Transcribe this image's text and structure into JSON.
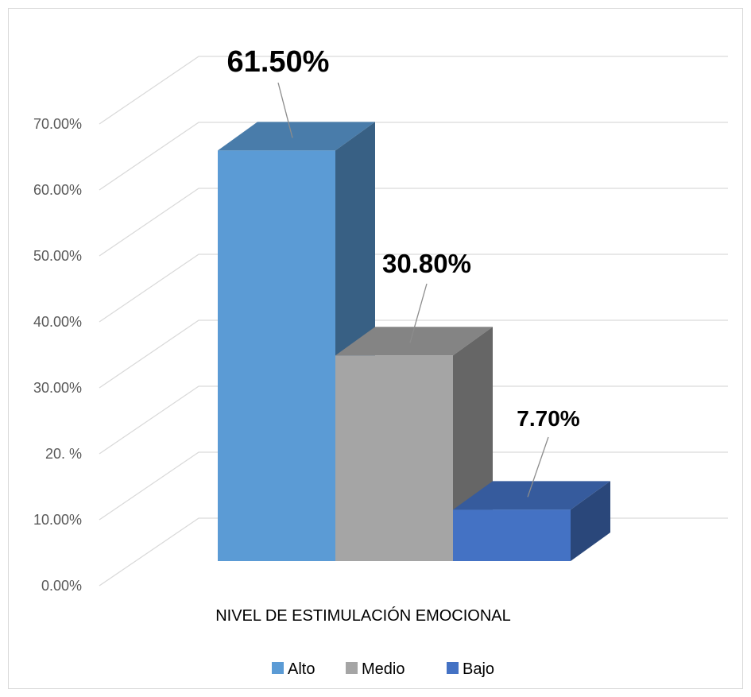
{
  "chart_data": {
    "type": "bar",
    "style": "3d-clustered-column",
    "categories": [
      "NIVEL DE ESTIMULACIÓN EMOCIONAL"
    ],
    "series": [
      {
        "name": "Alto",
        "values": [
          61.5
        ],
        "label": "61.50%",
        "color": "#5b9bd5"
      },
      {
        "name": "Medio",
        "values": [
          30.8
        ],
        "label": "30.80%",
        "color": "#a5a5a5"
      },
      {
        "name": "Bajo",
        "values": [
          7.7
        ],
        "label": "7.70%",
        "color": "#4472c4"
      }
    ],
    "ylim": [
      0,
      70
    ],
    "yticks": [
      "0.00%",
      "10.00%",
      "20.  %",
      "30.00%",
      "40.00%",
      "50.00%",
      "60.00%",
      "70.00%"
    ],
    "grid": true,
    "legend_position": "bottom",
    "title": "",
    "xlabel": "",
    "ylabel": ""
  }
}
